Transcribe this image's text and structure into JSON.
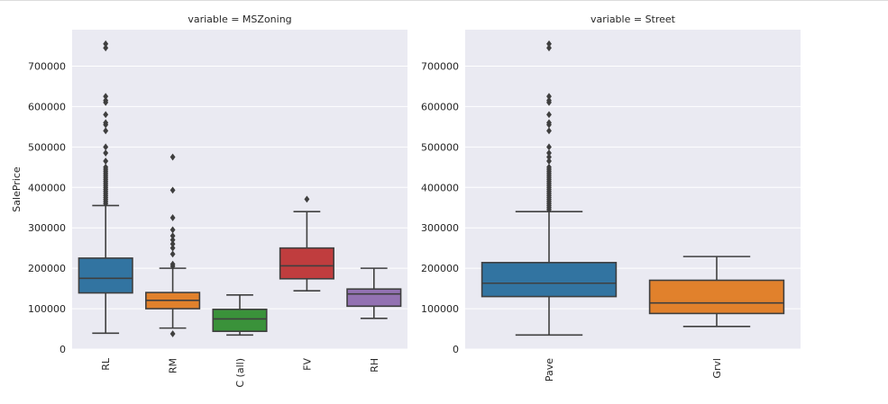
{
  "chart_data": [
    {
      "type": "box",
      "title": "variable = MSZoning",
      "xlabel": "",
      "ylabel": "SalePrice",
      "ylim": [
        0,
        790000
      ],
      "yticks": [
        0,
        100000,
        200000,
        300000,
        400000,
        500000,
        600000,
        700000
      ],
      "ytick_labels": [
        "0",
        "100000",
        "200000",
        "300000",
        "400000",
        "500000",
        "600000",
        "700000"
      ],
      "categories": [
        "RL",
        "RM",
        "C (all)",
        "FV",
        "RH"
      ],
      "boxes": [
        {
          "category": "RL",
          "color": "#3274a1",
          "whisker_low": 39300,
          "q1": 139000,
          "median": 175000,
          "q3": 225000,
          "whisker_high": 355000,
          "outliers": [
            360000,
            365000,
            370000,
            375000,
            380000,
            385000,
            390000,
            395000,
            400000,
            405000,
            410000,
            415000,
            420000,
            425000,
            430000,
            435000,
            440000,
            445000,
            450000,
            465000,
            485000,
            500000,
            540000,
            555000,
            560000,
            580000,
            610000,
            615000,
            625000,
            745000,
            755000
          ]
        },
        {
          "category": "RM",
          "color": "#e1812c",
          "whisker_low": 52000,
          "q1": 100000,
          "median": 120500,
          "q3": 140000,
          "whisker_high": 200000,
          "outliers": [
            37900,
            205000,
            210000,
            235000,
            250000,
            260000,
            270000,
            280000,
            295000,
            325000,
            393000,
            475000
          ]
        },
        {
          "category": "C (all)",
          "color": "#3a923a",
          "whisker_low": 34900,
          "q1": 43998,
          "median": 74700,
          "q3": 98332,
          "whisker_high": 133900,
          "outliers": []
        },
        {
          "category": "FV",
          "color": "#c03d3e",
          "whisker_low": 144152,
          "q1": 174000,
          "median": 205950,
          "q3": 250000,
          "whisker_high": 340000,
          "outliers": [
            370878
          ]
        },
        {
          "category": "RH",
          "color": "#9372b2",
          "whisker_low": 76000,
          "q1": 106150,
          "median": 136500,
          "q3": 148608,
          "whisker_high": 200000,
          "outliers": []
        }
      ]
    },
    {
      "type": "box",
      "title": "variable = Street",
      "xlabel": "",
      "ylabel": "",
      "ylim": [
        0,
        790000
      ],
      "yticks": [
        0,
        100000,
        200000,
        300000,
        400000,
        500000,
        600000,
        700000
      ],
      "ytick_labels": [
        "0",
        "100000",
        "200000",
        "300000",
        "400000",
        "500000",
        "600000",
        "700000"
      ],
      "categories": [
        "Pave",
        "Grvl"
      ],
      "boxes": [
        {
          "category": "Pave",
          "color": "#3274a1",
          "whisker_low": 34900,
          "q1": 129975,
          "median": 163000,
          "q3": 214000,
          "whisker_high": 340000,
          "outliers": [
            345000,
            350000,
            355000,
            360000,
            365000,
            370000,
            375000,
            380000,
            385000,
            390000,
            395000,
            400000,
            405000,
            410000,
            415000,
            420000,
            425000,
            430000,
            435000,
            440000,
            445000,
            450000,
            465000,
            475000,
            485000,
            500000,
            540000,
            555000,
            560000,
            580000,
            610000,
            615000,
            625000,
            745000,
            755000
          ]
        },
        {
          "category": "Grvl",
          "color": "#e1812c",
          "whisker_low": 55993,
          "q1": 88125,
          "median": 114250,
          "q3": 170250,
          "whisker_high": 228950,
          "outliers": []
        }
      ]
    }
  ]
}
